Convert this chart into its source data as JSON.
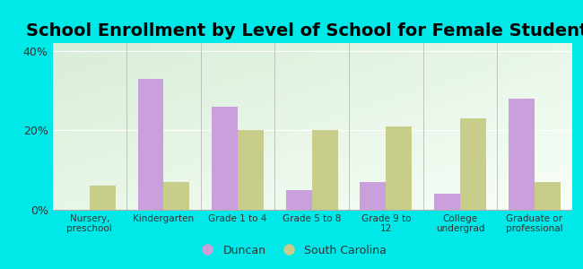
{
  "title": "School Enrollment by Level of School for Female Students",
  "categories": [
    "Nursery,\npreschool",
    "Kindergarten",
    "Grade 1 to 4",
    "Grade 5 to 8",
    "Grade 9 to\n12",
    "College\nundergrad",
    "Graduate or\nprofessional"
  ],
  "duncan": [
    0,
    33,
    26,
    5,
    7,
    4,
    28
  ],
  "south_carolina": [
    6,
    7,
    20,
    20,
    21,
    23,
    7
  ],
  "duncan_color": "#c9a0dc",
  "sc_color": "#c8cd8a",
  "bg_color": "#00e8e8",
  "plot_bg_topleft": "#d8edd8",
  "plot_bg_bottomright": "#f8fff8",
  "ylim": [
    0,
    42
  ],
  "yticks": [
    0,
    20,
    40
  ],
  "ytick_labels": [
    "0%",
    "20%",
    "40%"
  ],
  "title_fontsize": 14,
  "legend_duncan": "Duncan",
  "legend_sc": "South Carolina",
  "bar_width": 0.35
}
